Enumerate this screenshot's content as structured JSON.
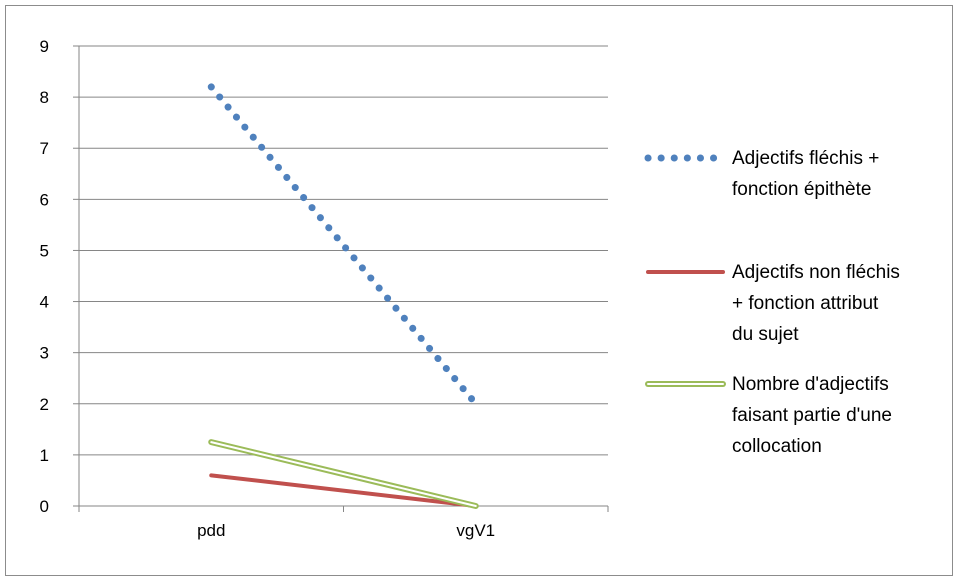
{
  "chart_data": {
    "type": "line",
    "title": "",
    "xlabel": "",
    "ylabel": "",
    "categories": [
      "pdd",
      "vgV1"
    ],
    "ylim": [
      0,
      9
    ],
    "yticks": [
      0,
      1,
      2,
      3,
      4,
      5,
      6,
      7,
      8,
      9
    ],
    "grid": true,
    "legend_position": "right",
    "series": [
      {
        "name_lines": [
          "Adjectifs fléchis +",
          "fonction épithète"
        ],
        "values": [
          8.2,
          2.0
        ],
        "color": "#4f81bd",
        "style": "dotted"
      },
      {
        "name_lines": [
          "Adjectifs non fléchis",
          "+ fonction attribut",
          "du sujet"
        ],
        "values": [
          0.6,
          0
        ],
        "color": "#c0504d",
        "style": "solid"
      },
      {
        "name_lines": [
          "Nombre d'adjectifs",
          "faisant partie d'une",
          "collocation"
        ],
        "values": [
          1.25,
          0
        ],
        "color": "#9bbb59",
        "style": "double"
      }
    ]
  }
}
